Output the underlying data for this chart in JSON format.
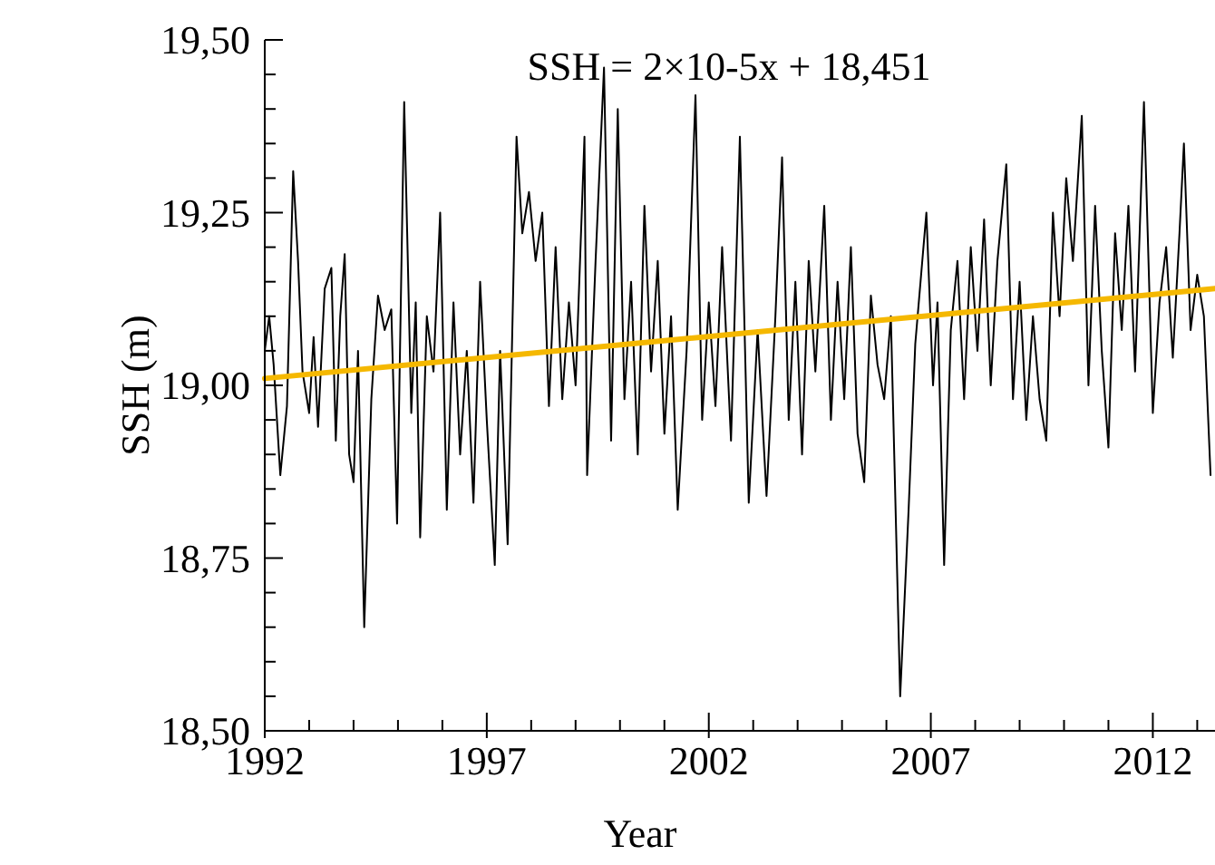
{
  "chart_data": {
    "type": "line",
    "xlabel": "Year",
    "ylabel": "SSH (m)",
    "annotations": [
      "SSH = 2×10-5x + 18,451"
    ],
    "xlim": [
      1992,
      2013.4
    ],
    "xticks": [
      1992,
      1997,
      2002,
      2007,
      2012
    ],
    "ylim": [
      18.5,
      19.5
    ],
    "yticks": [
      {
        "value": 18.5,
        "label": "18,50"
      },
      {
        "value": 18.75,
        "label": "18,75"
      },
      {
        "value": 19,
        "label": "19,00"
      },
      {
        "value": 19.25,
        "label": "19,25"
      },
      {
        "value": 19.5,
        "label": "19,50"
      }
    ],
    "grid": false,
    "series": [
      {
        "color": "#000000",
        "x": [
          1992.0,
          1992.1,
          1992.2,
          1992.35,
          1992.5,
          1992.64,
          1992.75,
          1992.85,
          1993.0,
          1993.1,
          1993.2,
          1993.35,
          1993.5,
          1993.6,
          1993.7,
          1993.8,
          1993.9,
          1994.0,
          1994.1,
          1994.24,
          1994.4,
          1994.55,
          1994.7,
          1994.85,
          1994.98,
          1995.14,
          1995.3,
          1995.4,
          1995.5,
          1995.65,
          1995.8,
          1995.95,
          1996.1,
          1996.25,
          1996.4,
          1996.55,
          1996.7,
          1996.85,
          1997.0,
          1997.18,
          1997.3,
          1997.47,
          1997.67,
          1997.8,
          1997.95,
          1998.1,
          1998.25,
          1998.4,
          1998.55,
          1998.7,
          1998.85,
          1999.0,
          1999.2,
          1999.26,
          1999.45,
          1999.64,
          1999.8,
          1999.95,
          2000.1,
          2000.25,
          2000.4,
          2000.55,
          2000.7,
          2000.85,
          2001.0,
          2001.15,
          2001.3,
          2001.5,
          2001.7,
          2001.85,
          2002.0,
          2002.15,
          2002.3,
          2002.5,
          2002.7,
          2002.9,
          2003.1,
          2003.3,
          2003.5,
          2003.65,
          2003.8,
          2003.95,
          2004.1,
          2004.25,
          2004.4,
          2004.6,
          2004.75,
          2004.9,
          2005.05,
          2005.2,
          2005.35,
          2005.5,
          2005.65,
          2005.8,
          2005.95,
          2006.1,
          2006.31,
          2006.5,
          2006.65,
          2006.9,
          2007.05,
          2007.15,
          2007.3,
          2007.45,
          2007.6,
          2007.75,
          2007.9,
          2008.05,
          2008.2,
          2008.35,
          2008.5,
          2008.7,
          2008.85,
          2009.0,
          2009.15,
          2009.3,
          2009.45,
          2009.6,
          2009.75,
          2009.9,
          2010.05,
          2010.2,
          2010.4,
          2010.55,
          2010.7,
          2010.85,
          2011.0,
          2011.15,
          2011.3,
          2011.45,
          2011.6,
          2011.8,
          2012.0,
          2012.15,
          2012.3,
          2012.45,
          2012.6,
          2012.7,
          2012.85,
          2013.0,
          2013.15,
          2013.3
        ],
        "values": [
          19.05,
          19.1,
          19.03,
          18.87,
          18.97,
          19.31,
          19.18,
          19.02,
          18.96,
          19.07,
          18.94,
          19.14,
          19.17,
          18.92,
          19.1,
          19.19,
          18.9,
          18.86,
          19.05,
          18.65,
          18.98,
          19.13,
          19.08,
          19.11,
          18.8,
          19.41,
          18.96,
          19.12,
          18.78,
          19.1,
          19.02,
          19.25,
          18.82,
          19.12,
          18.9,
          19.05,
          18.83,
          19.15,
          18.95,
          18.74,
          19.05,
          18.77,
          19.36,
          19.22,
          19.28,
          19.18,
          19.25,
          18.97,
          19.2,
          18.98,
          19.12,
          19.0,
          19.36,
          18.87,
          19.18,
          19.46,
          18.92,
          19.4,
          18.98,
          19.15,
          18.9,
          19.26,
          19.02,
          19.18,
          18.93,
          19.1,
          18.82,
          19.05,
          19.42,
          18.95,
          19.12,
          18.97,
          19.2,
          18.92,
          19.36,
          18.83,
          19.08,
          18.84,
          19.1,
          19.33,
          18.95,
          19.15,
          18.9,
          19.18,
          19.02,
          19.26,
          18.95,
          19.15,
          18.98,
          19.2,
          18.93,
          18.86,
          19.13,
          19.03,
          18.98,
          19.1,
          18.55,
          18.82,
          19.06,
          19.25,
          19.0,
          19.12,
          18.74,
          19.08,
          19.18,
          18.98,
          19.2,
          19.05,
          19.24,
          19.0,
          19.18,
          19.32,
          18.98,
          19.15,
          18.95,
          19.1,
          18.98,
          18.92,
          19.25,
          19.1,
          19.3,
          19.18,
          19.39,
          19.0,
          19.26,
          19.05,
          18.91,
          19.22,
          19.08,
          19.26,
          19.02,
          19.41,
          18.96,
          19.12,
          19.2,
          19.04,
          19.22,
          19.35,
          19.08,
          19.16,
          19.1,
          18.87
        ]
      },
      {
        "type": "line",
        "color": "#f5b800",
        "x": [
          1992,
          2013.4
        ],
        "values": [
          19.01,
          19.14
        ]
      }
    ]
  }
}
